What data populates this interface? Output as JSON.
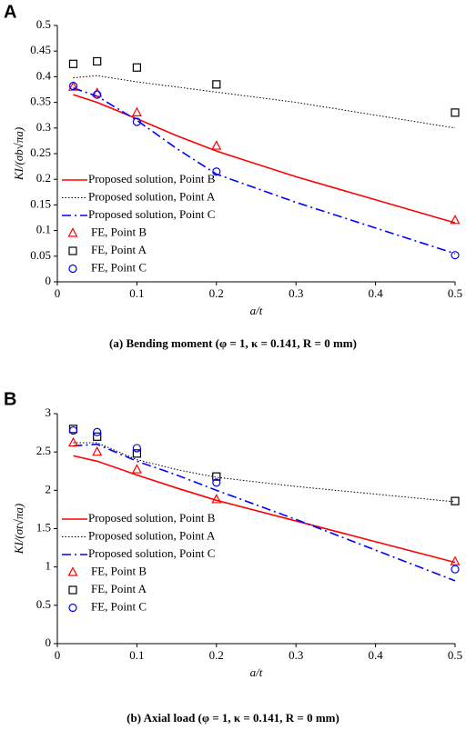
{
  "chart_data": [
    {
      "type": "line",
      "panel_label": "A",
      "caption": "(a) Bending moment (φ = 1, κ = 0.141, R = 0 mm)",
      "xlabel": "a/t",
      "ylabel": "KI/(σb√πa)",
      "xlim": [
        0,
        0.5
      ],
      "xticks": [
        0,
        0.1,
        0.2,
        0.3,
        0.4,
        0.5
      ],
      "ylim": [
        0,
        0.5
      ],
      "yticks": [
        0,
        0.05,
        0.1,
        0.15,
        0.2,
        0.25,
        0.3,
        0.35,
        0.4,
        0.45,
        0.5
      ],
      "legend": "lower left",
      "series": [
        {
          "name": "Proposed solution, Point B",
          "color": "#ff0000",
          "style": "solid",
          "x": [
            0.02,
            0.05,
            0.1,
            0.15,
            0.2,
            0.3,
            0.4,
            0.5
          ],
          "values": [
            0.365,
            0.35,
            0.318,
            0.285,
            0.255,
            0.205,
            0.16,
            0.115
          ]
        },
        {
          "name": "Proposed solution, Point A",
          "color": "#000000",
          "style": "dotted",
          "x": [
            0.02,
            0.05,
            0.1,
            0.15,
            0.2,
            0.3,
            0.4,
            0.5
          ],
          "values": [
            0.398,
            0.402,
            0.39,
            0.38,
            0.37,
            0.35,
            0.325,
            0.3
          ]
        },
        {
          "name": "Proposed solution, Point C",
          "color": "#0000ff",
          "style": "dashdot",
          "x": [
            0.02,
            0.05,
            0.1,
            0.15,
            0.2,
            0.3,
            0.4,
            0.5
          ],
          "values": [
            0.378,
            0.362,
            0.315,
            0.26,
            0.21,
            0.155,
            0.105,
            0.055
          ]
        },
        {
          "name": "FE, Point B",
          "color": "#ff0000",
          "marker": "triangle",
          "x": [
            0.02,
            0.05,
            0.1,
            0.2,
            0.5
          ],
          "values": [
            0.38,
            0.368,
            0.33,
            0.265,
            0.12
          ]
        },
        {
          "name": "FE, Point A",
          "color": "#000000",
          "marker": "square",
          "x": [
            0.02,
            0.05,
            0.1,
            0.2,
            0.5
          ],
          "values": [
            0.425,
            0.43,
            0.418,
            0.385,
            0.33
          ]
        },
        {
          "name": "FE, Point C",
          "color": "#0000ff",
          "marker": "circle",
          "x": [
            0.02,
            0.05,
            0.1,
            0.2,
            0.5
          ],
          "values": [
            0.382,
            0.365,
            0.312,
            0.215,
            0.052
          ]
        }
      ]
    },
    {
      "type": "line",
      "panel_label": "B",
      "caption": "(b) Axial load (φ = 1, κ = 0.141, R = 0 mm)",
      "xlabel": "a/t",
      "ylabel": "KI/(σt√πa)",
      "xlim": [
        0,
        0.5
      ],
      "xticks": [
        0,
        0.1,
        0.2,
        0.3,
        0.4,
        0.5
      ],
      "ylim": [
        0,
        3
      ],
      "yticks": [
        0,
        0.5,
        1,
        1.5,
        2,
        2.5,
        3
      ],
      "legend": "lower left",
      "series": [
        {
          "name": "Proposed solution, Point B",
          "color": "#ff0000",
          "style": "solid",
          "x": [
            0.02,
            0.05,
            0.1,
            0.15,
            0.2,
            0.3,
            0.4,
            0.5
          ],
          "values": [
            2.45,
            2.38,
            2.2,
            2.03,
            1.87,
            1.6,
            1.33,
            1.06
          ]
        },
        {
          "name": "Proposed solution, Point A",
          "color": "#000000",
          "style": "dotted",
          "x": [
            0.02,
            0.05,
            0.1,
            0.15,
            0.2,
            0.3,
            0.4,
            0.5
          ],
          "values": [
            2.62,
            2.62,
            2.4,
            2.27,
            2.17,
            2.05,
            1.95,
            1.85
          ]
        },
        {
          "name": "Proposed solution, Point C",
          "color": "#0000ff",
          "style": "dashdot",
          "x": [
            0.02,
            0.05,
            0.1,
            0.15,
            0.2,
            0.3,
            0.4,
            0.5
          ],
          "values": [
            2.58,
            2.6,
            2.38,
            2.2,
            2.0,
            1.62,
            1.22,
            0.82
          ]
        },
        {
          "name": "FE, Point B",
          "color": "#ff0000",
          "marker": "triangle",
          "x": [
            0.02,
            0.05,
            0.1,
            0.2,
            0.5
          ],
          "values": [
            2.62,
            2.5,
            2.27,
            1.88,
            1.07
          ]
        },
        {
          "name": "FE, Point A",
          "color": "#000000",
          "marker": "square",
          "x": [
            0.02,
            0.05,
            0.1,
            0.2,
            0.5
          ],
          "values": [
            2.8,
            2.7,
            2.48,
            2.18,
            1.86
          ]
        },
        {
          "name": "FE, Point C",
          "color": "#0000ff",
          "marker": "circle",
          "x": [
            0.02,
            0.05,
            0.1,
            0.2,
            0.5
          ],
          "values": [
            2.78,
            2.76,
            2.55,
            2.1,
            0.97
          ]
        }
      ]
    }
  ]
}
